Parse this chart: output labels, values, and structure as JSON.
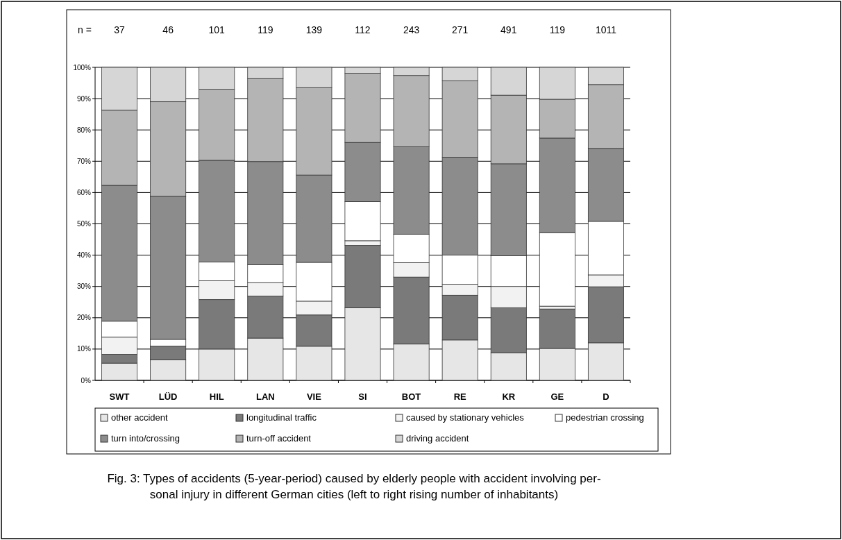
{
  "chart_data": {
    "type": "bar",
    "stacked": true,
    "categories": [
      "SWT",
      "LÜD",
      "HIL",
      "LAN",
      "VIE",
      "SI",
      "BOT",
      "RE",
      "KR",
      "GE",
      "D"
    ],
    "series": [
      {
        "name": "other accident",
        "color": "#e6e6e6",
        "values": [
          5.5,
          6.6,
          10.0,
          13.5,
          10.9,
          23.2,
          11.6,
          12.9,
          8.8,
          10.2,
          12.0
        ]
      },
      {
        "name": "longitudinal traffic",
        "color": "#7a7a7a",
        "values": [
          2.8,
          4.3,
          15.8,
          13.4,
          10.0,
          19.9,
          21.4,
          14.3,
          14.4,
          12.6,
          17.9
        ]
      },
      {
        "name": "caused by stationary vehicles",
        "color": "#f2f2f2",
        "values": [
          5.5,
          0,
          6.0,
          4.3,
          4.4,
          1.5,
          4.6,
          3.5,
          6.8,
          0.9,
          3.8
        ]
      },
      {
        "name": "pedestrian crossing",
        "color": "#ffffff",
        "values": [
          5.1,
          2.2,
          6.0,
          5.7,
          12.4,
          12.5,
          9.1,
          9.3,
          9.8,
          23.5,
          17.1
        ]
      },
      {
        "name": "turn into/crossing",
        "color": "#8c8c8c",
        "values": [
          43.4,
          45.7,
          32.5,
          33.0,
          27.9,
          18.9,
          27.9,
          31.3,
          29.4,
          30.2,
          23.3
        ]
      },
      {
        "name": "turn-off accident",
        "color": "#b4b4b4",
        "values": [
          24.0,
          30.2,
          22.7,
          26.5,
          27.9,
          22.1,
          22.8,
          24.4,
          21.9,
          12.4,
          20.4
        ]
      },
      {
        "name": "driving accident",
        "color": "#d6d6d6",
        "values": [
          13.7,
          11.0,
          7.0,
          3.6,
          6.5,
          1.9,
          2.6,
          4.3,
          8.9,
          10.2,
          5.5
        ]
      }
    ],
    "ylim": [
      0,
      100
    ],
    "yticks": [
      {
        "value": 0,
        "label": "0%"
      },
      {
        "value": 10,
        "label": "10%"
      },
      {
        "value": 20,
        "label": "20%"
      },
      {
        "value": 30,
        "label": "30%"
      },
      {
        "value": 40,
        "label": "40%"
      },
      {
        "value": 50,
        "label": "50%"
      },
      {
        "value": 60,
        "label": "60%"
      },
      {
        "value": 70,
        "label": "70%"
      },
      {
        "value": 80,
        "label": "80%"
      },
      {
        "value": 90,
        "label": "90%"
      },
      {
        "value": 100,
        "label": "100%"
      }
    ],
    "grid": "y",
    "legend": "bottom",
    "annotations": [
      "n =",
      "37",
      "46",
      "101",
      "119",
      "139",
      "112",
      "243",
      "271",
      "491",
      "119",
      "1011",
      "Fig. 3: Types of accidents (5-year-period) caused by elderly people with accident involving per-\nsonal injury in different German cities (left to right rising number of inhabitants)"
    ]
  }
}
